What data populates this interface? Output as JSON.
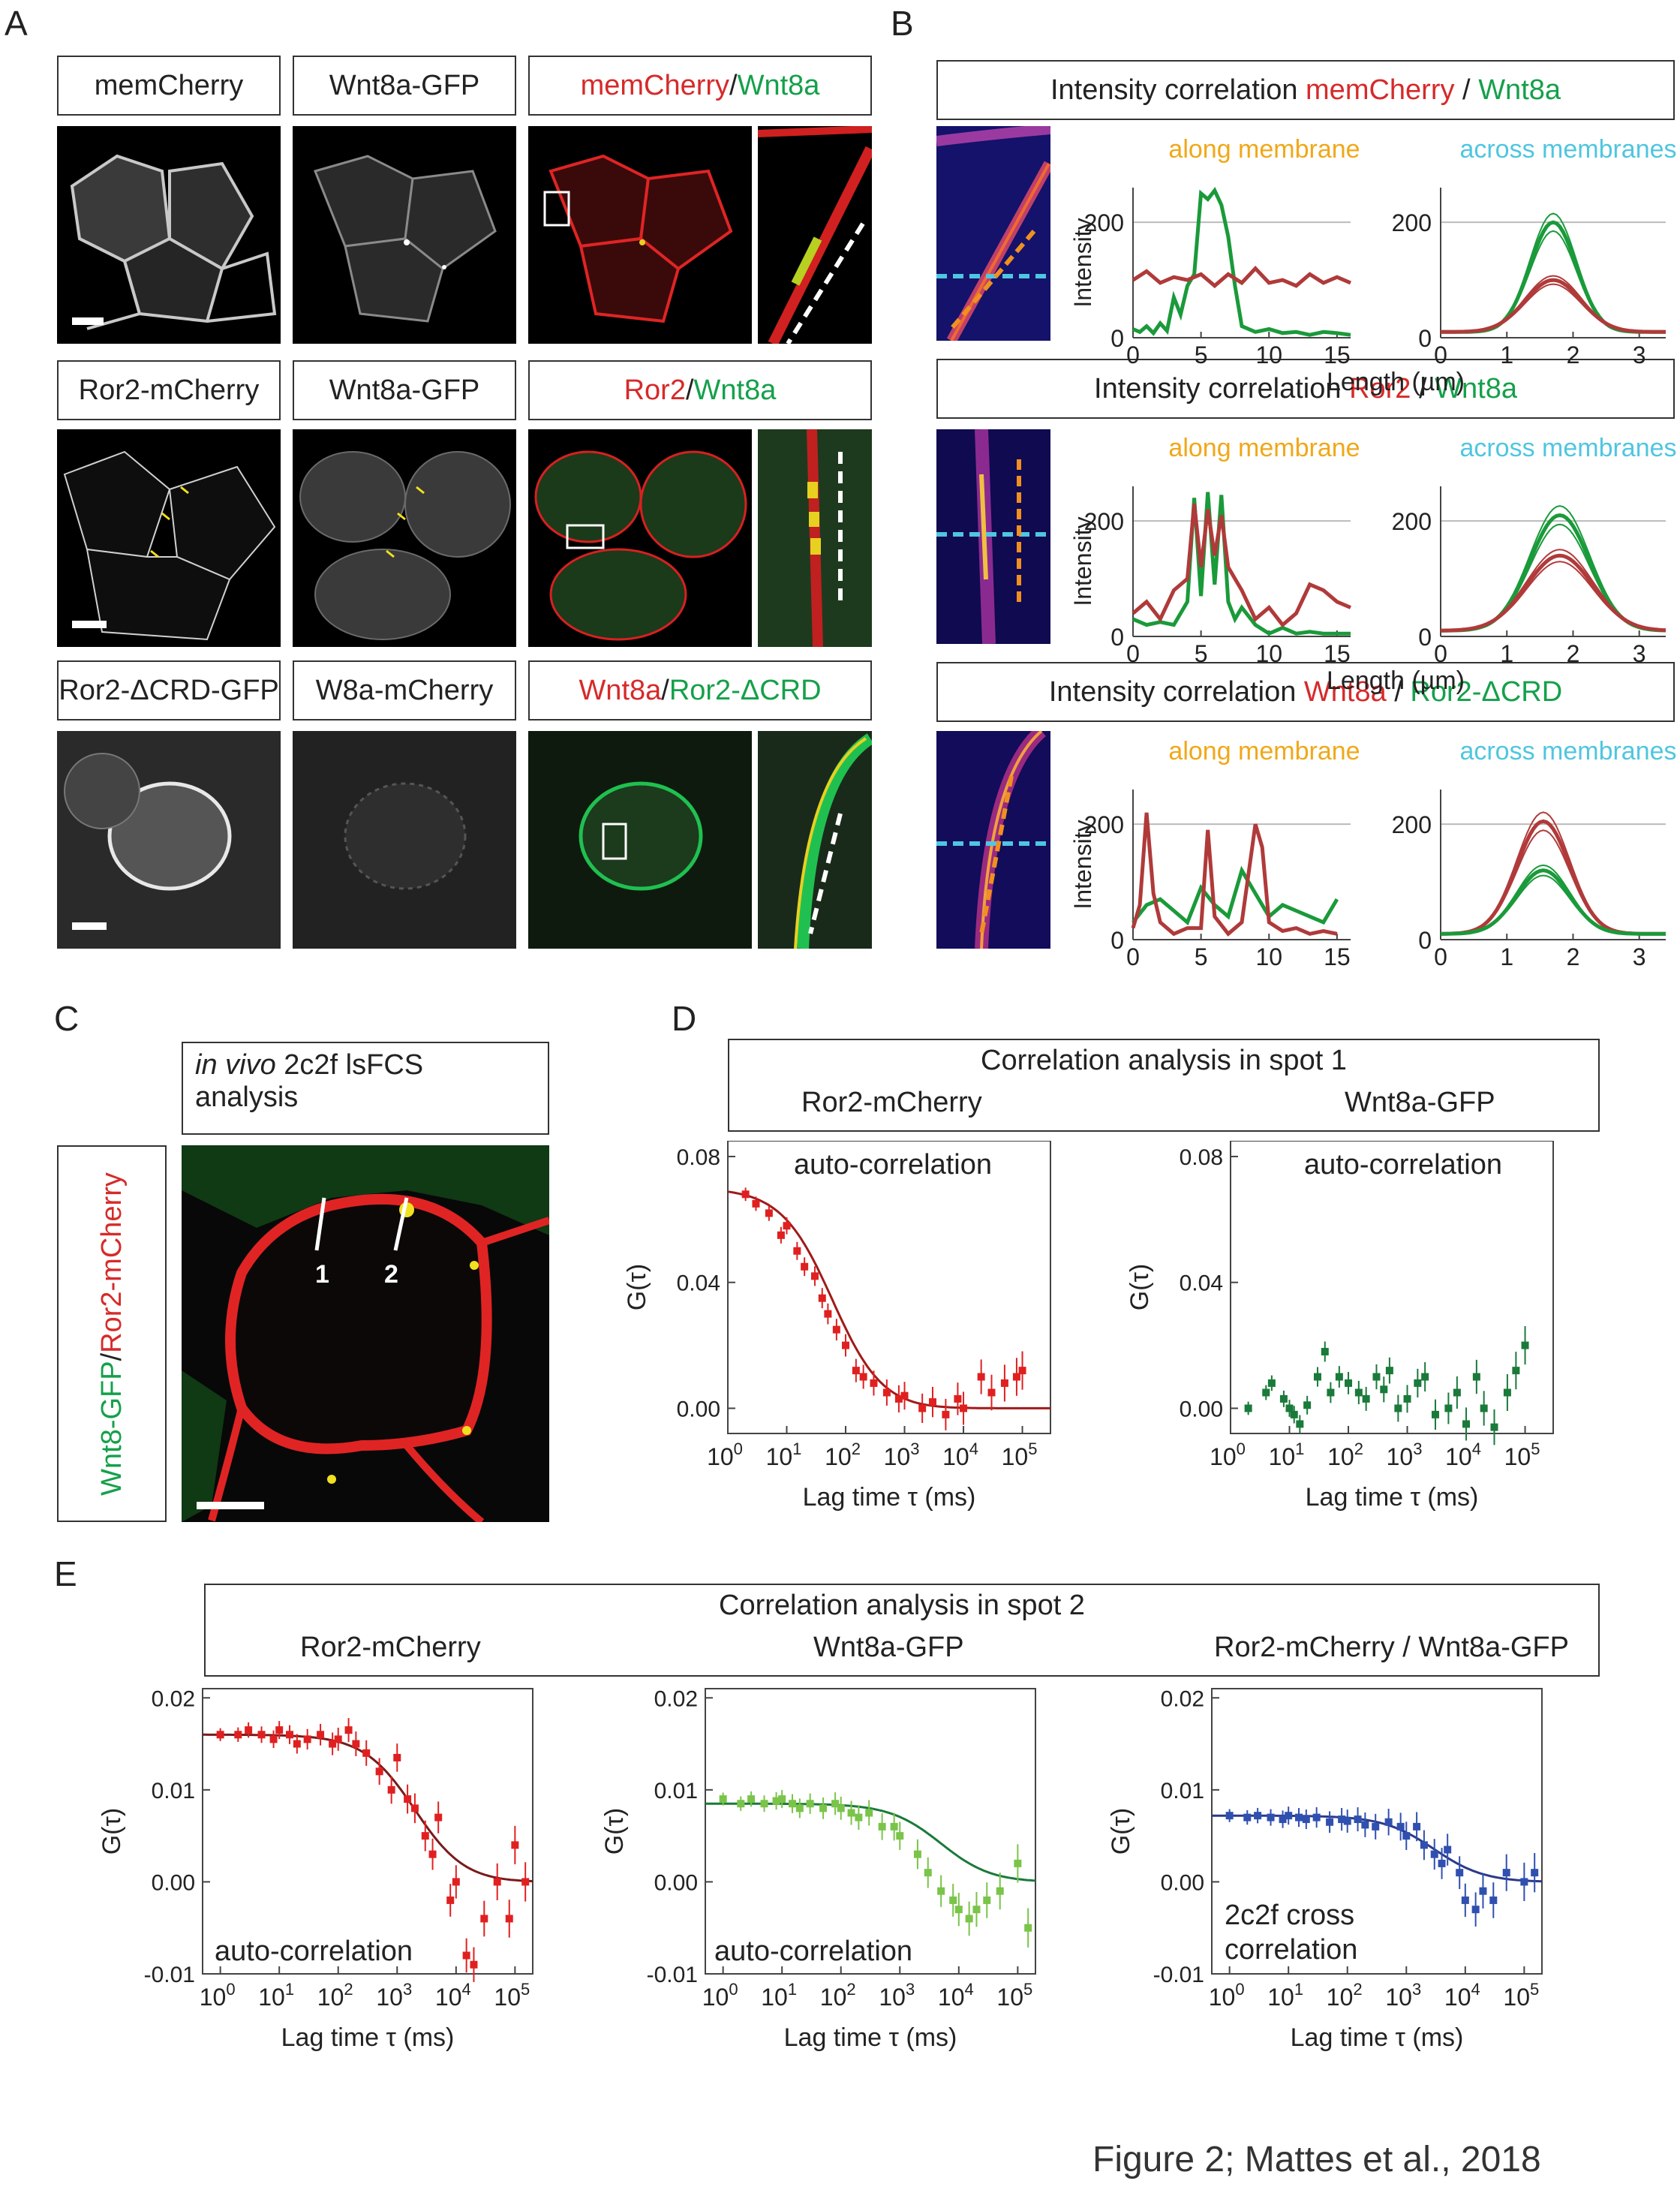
{
  "figure_caption": "Figure 2; Mattes et al., 2018",
  "panels": [
    "A",
    "B",
    "C",
    "D",
    "E"
  ],
  "panel_a": {
    "row1": {
      "c1": "memCherry",
      "c2": "Wnt8a-GFP",
      "c3a": "memCherry",
      "sep": " / ",
      "c3b": "Wnt8a"
    },
    "row2": {
      "c1": "Ror2-mCherry",
      "c2": "Wnt8a-GFP",
      "c3a": "Ror2",
      "sep": " / ",
      "c3b": "Wnt8a"
    },
    "row3": {
      "c1": "Ror2-ΔCRD-GFP",
      "c2": "W8a-mCherry",
      "c3a": "Wnt8a",
      "sep": " / ",
      "c3b": "Ror2-ΔCRD"
    }
  },
  "panel_b": {
    "title_prefix": "Intensity correlation",
    "rows": [
      {
        "a": "memCherry",
        "b": "Wnt8a"
      },
      {
        "a": "Ror2",
        "b": "Wnt8a"
      },
      {
        "a": "Wnt8a",
        "b": "Ror2-ΔCRD"
      }
    ],
    "along": "along membrane",
    "across": "across membranes",
    "ylabel": "Intensity",
    "xlabel": "Length (µm)",
    "along_xticks": [
      "0",
      "5",
      "10",
      "15"
    ],
    "across_xticks": [
      "0",
      "1",
      "2",
      "3"
    ],
    "yticks": [
      "0",
      "200"
    ]
  },
  "panel_c": {
    "title_italic": "in vivo",
    "title_rest": " 2c2f lsFCS",
    "title_line2": "analysis",
    "side_green": "Wnt8-GFP",
    "side_sep": "/",
    "side_red": "Ror2-mCherry",
    "spot1": "1",
    "spot2": "2"
  },
  "panel_d": {
    "title": "Correlation analysis in spot 1",
    "col1": "Ror2-mCherry",
    "col2": "Wnt8a-GFP",
    "plot_label": "auto-correlation"
  },
  "panel_e": {
    "title": "Correlation analysis in spot 2",
    "col1": "Ror2-mCherry",
    "col2": "Wnt8a-GFP",
    "col3": "Ror2-mCherry / Wnt8a-GFP",
    "label1": "auto-correlation",
    "label2": "auto-correlation",
    "label3_line1": "2c2f cross",
    "label3_line2": "correlation"
  },
  "chart_data": [
    {
      "id": "B1-along",
      "type": "line",
      "xlabel": "Length (µm)",
      "ylabel": "Intensity",
      "xlim": [
        0,
        16
      ],
      "ylim": [
        0,
        260
      ],
      "series": [
        {
          "color": "#1a9a3a",
          "x": [
            0,
            0.5,
            1,
            1.5,
            2,
            2.5,
            3,
            3.5,
            4,
            4.5,
            5,
            5.5,
            6,
            6.5,
            7,
            7.5,
            8,
            9,
            10,
            11,
            12,
            13,
            14,
            15,
            16
          ],
          "y": [
            15,
            10,
            20,
            8,
            25,
            12,
            70,
            40,
            90,
            110,
            250,
            240,
            255,
            230,
            175,
            90,
            20,
            10,
            15,
            8,
            10,
            5,
            10,
            8,
            5
          ]
        },
        {
          "color": "#b03a3a",
          "x": [
            0,
            1,
            2,
            3,
            4,
            5,
            6,
            7,
            8,
            9,
            10,
            11,
            12,
            13,
            14,
            15,
            16
          ],
          "y": [
            100,
            115,
            95,
            105,
            100,
            110,
            90,
            110,
            95,
            120,
            95,
            100,
            90,
            110,
            95,
            105,
            95
          ]
        }
      ]
    },
    {
      "id": "B1-across",
      "type": "line",
      "xlabel": "Length (µm)",
      "ylabel": "Intensity",
      "xlim": [
        0,
        3.4
      ],
      "ylim": [
        0,
        260
      ],
      "series": [
        {
          "color": "#1a9a3a",
          "peak": 190,
          "center": 1.7,
          "width": 0.35
        },
        {
          "color": "#b03a3a",
          "peak": 90,
          "center": 1.7,
          "width": 0.42
        }
      ]
    },
    {
      "id": "B2-along",
      "type": "line",
      "xlabel": "Length (µm)",
      "ylabel": "Intensity",
      "xlim": [
        0,
        16
      ],
      "ylim": [
        0,
        260
      ],
      "series": [
        {
          "color": "#1a9a3a",
          "x": [
            0,
            1,
            2,
            3,
            4,
            4.5,
            5,
            5.5,
            6,
            6.5,
            7,
            7.5,
            8,
            9,
            10,
            11,
            12,
            13,
            14,
            15,
            16
          ],
          "y": [
            30,
            20,
            25,
            20,
            60,
            240,
            70,
            250,
            90,
            245,
            60,
            30,
            50,
            20,
            5,
            15,
            5,
            8,
            5,
            5,
            5
          ]
        },
        {
          "color": "#b03a3a",
          "x": [
            0,
            1,
            2,
            3,
            4,
            4.5,
            5,
            5.5,
            6,
            6.5,
            7,
            7.5,
            8,
            9,
            10,
            11,
            12,
            13,
            14,
            15,
            16
          ],
          "y": [
            40,
            60,
            30,
            80,
            100,
            230,
            120,
            220,
            140,
            210,
            120,
            100,
            80,
            30,
            50,
            20,
            40,
            90,
            80,
            60,
            50
          ]
        }
      ]
    },
    {
      "id": "B2-across",
      "type": "line",
      "xlabel": "Length (µm)",
      "ylabel": "Intensity",
      "xlim": [
        0,
        3.4
      ],
      "ylim": [
        0,
        260
      ],
      "series": [
        {
          "color": "#1a9a3a",
          "peak": 200,
          "center": 1.8,
          "width": 0.45
        },
        {
          "color": "#b03a3a",
          "peak": 130,
          "center": 1.8,
          "width": 0.5
        }
      ]
    },
    {
      "id": "B3-along",
      "type": "line",
      "xlabel": "Length (µm)",
      "ylabel": "Intensity",
      "xlim": [
        0,
        16
      ],
      "ylim": [
        0,
        260
      ],
      "series": [
        {
          "color": "#1a9a3a",
          "x": [
            0,
            1,
            2,
            3,
            4,
            5,
            6,
            7,
            8,
            9,
            10,
            11,
            12,
            13,
            14,
            15
          ],
          "y": [
            30,
            60,
            70,
            50,
            30,
            90,
            60,
            40,
            120,
            80,
            40,
            60,
            50,
            40,
            30,
            70
          ]
        },
        {
          "color": "#b03a3a",
          "x": [
            0,
            0.5,
            1,
            1.5,
            2,
            3,
            4,
            5,
            5.5,
            6,
            7,
            8,
            9,
            9.5,
            10,
            11,
            12,
            13,
            14,
            15
          ],
          "y": [
            20,
            60,
            220,
            80,
            30,
            10,
            20,
            20,
            190,
            40,
            10,
            30,
            200,
            160,
            30,
            15,
            20,
            10,
            15,
            10
          ]
        }
      ]
    },
    {
      "id": "B3-across",
      "type": "line",
      "xlabel": "Length (µm)",
      "ylabel": "Intensity",
      "xlim": [
        0,
        3.4
      ],
      "ylim": [
        0,
        260
      ],
      "series": [
        {
          "color": "#b03a3a",
          "peak": 195,
          "center": 1.55,
          "width": 0.4
        },
        {
          "color": "#1a9a3a",
          "peak": 110,
          "center": 1.55,
          "width": 0.4
        }
      ]
    },
    {
      "id": "D1",
      "type": "scatter",
      "title": "Ror2-mCherry",
      "xlabel": "Lag time τ (ms)",
      "ylabel": "G(τ)",
      "xscale": "log",
      "xlim": [
        1,
        300000
      ],
      "ylim": [
        -0.008,
        0.085
      ],
      "fit": {
        "g0": 0.07,
        "tau": 60,
        "color": "#a01a1a"
      },
      "series": [
        {
          "color": "#e02020",
          "x": [
            2,
            3,
            5,
            8,
            10,
            15,
            20,
            30,
            40,
            50,
            70,
            100,
            150,
            200,
            300,
            500,
            800,
            1000,
            2000,
            3000,
            5000,
            8000,
            10000,
            20000,
            30000,
            50000,
            80000,
            100000
          ],
          "y": [
            0.068,
            0.065,
            0.062,
            0.055,
            0.058,
            0.05,
            0.045,
            0.042,
            0.035,
            0.03,
            0.025,
            0.02,
            0.012,
            0.01,
            0.008,
            0.005,
            0.003,
            0.004,
            0.0,
            0.002,
            -0.002,
            0.003,
            0.0,
            0.01,
            0.005,
            0.008,
            0.01,
            0.012
          ]
        }
      ]
    },
    {
      "id": "D2",
      "type": "scatter",
      "title": "Wnt8a-GFP",
      "xlabel": "Lag time τ (ms)",
      "ylabel": "G(τ)",
      "xscale": "log",
      "xlim": [
        1,
        300000
      ],
      "ylim": [
        -0.008,
        0.085
      ],
      "series": [
        {
          "color": "#1a7a3a",
          "x": [
            2,
            4,
            5,
            8,
            10,
            12,
            15,
            20,
            30,
            40,
            50,
            70,
            100,
            150,
            200,
            300,
            400,
            500,
            700,
            1000,
            1500,
            2000,
            3000,
            5000,
            7000,
            10000,
            15000,
            20000,
            30000,
            50000,
            70000,
            100000
          ],
          "y": [
            0.0,
            0.005,
            0.008,
            0.003,
            0.0,
            -0.002,
            -0.005,
            0.001,
            0.01,
            0.018,
            0.005,
            0.01,
            0.008,
            0.005,
            0.003,
            0.01,
            0.006,
            0.012,
            0.0,
            0.003,
            0.008,
            0.01,
            -0.002,
            0.0,
            0.005,
            -0.005,
            0.01,
            0.0,
            -0.006,
            0.005,
            0.012,
            0.02
          ]
        }
      ]
    },
    {
      "id": "E1",
      "type": "scatter",
      "title": "Ror2-mCherry",
      "xlabel": "Lag time τ (ms)",
      "ylabel": "G(τ)",
      "xscale": "log",
      "xlim": [
        0.5,
        200000
      ],
      "ylim": [
        -0.01,
        0.021
      ],
      "fit": {
        "g0": 0.016,
        "tau": 2000,
        "color": "#7a1a1a"
      },
      "series": [
        {
          "color": "#e02020",
          "x": [
            1,
            2,
            3,
            5,
            8,
            10,
            15,
            20,
            30,
            50,
            80,
            100,
            150,
            200,
            300,
            500,
            800,
            1000,
            1500,
            2000,
            3000,
            4000,
            5000,
            8000,
            10000,
            15000,
            20000,
            30000,
            50000,
            80000,
            100000,
            150000
          ],
          "y": [
            0.016,
            0.016,
            0.0165,
            0.016,
            0.0155,
            0.0165,
            0.016,
            0.015,
            0.0155,
            0.016,
            0.015,
            0.0155,
            0.0165,
            0.015,
            0.014,
            0.012,
            0.01,
            0.0135,
            0.009,
            0.008,
            0.005,
            0.003,
            0.007,
            -0.002,
            0.0,
            -0.008,
            -0.009,
            -0.004,
            0.0,
            -0.004,
            0.004,
            0.0
          ]
        }
      ]
    },
    {
      "id": "E2",
      "type": "scatter",
      "title": "Wnt8a-GFP",
      "xlabel": "Lag time τ (ms)",
      "ylabel": "G(τ)",
      "xscale": "log",
      "xlim": [
        0.5,
        200000
      ],
      "ylim": [
        -0.01,
        0.021
      ],
      "fit": {
        "g0": 0.0085,
        "tau": 5000,
        "color": "#1a7a3a"
      },
      "series": [
        {
          "color": "#7ac44a",
          "x": [
            1,
            2,
            3,
            5,
            8,
            10,
            15,
            20,
            30,
            50,
            80,
            100,
            150,
            200,
            300,
            500,
            800,
            1000,
            2000,
            3000,
            5000,
            8000,
            10000,
            15000,
            20000,
            30000,
            50000,
            100000,
            150000
          ],
          "y": [
            0.009,
            0.0085,
            0.009,
            0.0085,
            0.0088,
            0.009,
            0.0085,
            0.008,
            0.0085,
            0.008,
            0.0085,
            0.008,
            0.0075,
            0.007,
            0.0075,
            0.006,
            0.006,
            0.005,
            0.003,
            0.001,
            -0.001,
            -0.002,
            -0.003,
            -0.004,
            -0.003,
            -0.002,
            -0.001,
            0.002,
            -0.005
          ]
        }
      ]
    },
    {
      "id": "E3",
      "type": "scatter",
      "title": "Ror2-mCherry / Wnt8a-GFP",
      "xlabel": "Lag time τ (ms)",
      "ylabel": "G(τ)",
      "xscale": "log",
      "xlim": [
        0.5,
        200000
      ],
      "ylim": [
        -0.01,
        0.021
      ],
      "fit": {
        "g0": 0.0072,
        "tau": 3000,
        "color": "#2a3a8a"
      },
      "series": [
        {
          "color": "#3050b0",
          "x": [
            1,
            2,
            3,
            5,
            8,
            10,
            15,
            20,
            30,
            50,
            80,
            100,
            150,
            200,
            300,
            500,
            800,
            1000,
            1500,
            2000,
            3000,
            4000,
            5000,
            8000,
            10000,
            15000,
            20000,
            30000,
            50000,
            100000,
            150000
          ],
          "y": [
            0.0072,
            0.007,
            0.0072,
            0.007,
            0.0068,
            0.0072,
            0.007,
            0.0068,
            0.007,
            0.0065,
            0.0068,
            0.0066,
            0.0068,
            0.0062,
            0.006,
            0.0065,
            0.006,
            0.005,
            0.006,
            0.004,
            0.003,
            0.002,
            0.0035,
            0.001,
            -0.002,
            -0.003,
            -0.001,
            -0.002,
            0.001,
            0.0,
            0.001
          ]
        }
      ]
    }
  ]
}
